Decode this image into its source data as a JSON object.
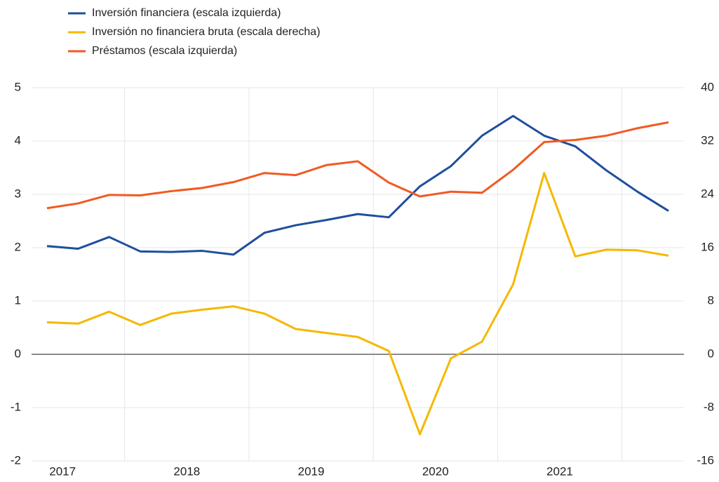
{
  "chart_data": {
    "type": "line",
    "categories": [
      "2017",
      null,
      null,
      null,
      "2018",
      null,
      null,
      null,
      "2019",
      null,
      null,
      null,
      "2020",
      null,
      null,
      null,
      "2021",
      null,
      null,
      null,
      null
    ],
    "series": [
      {
        "name": "Inversión financiera (escala izquierda)",
        "color": "#1f4e9c",
        "axis": "y",
        "values": [
          2.03,
          1.98,
          2.2,
          1.93,
          1.92,
          1.94,
          1.87,
          2.28,
          2.42,
          2.52,
          2.63,
          2.57,
          3.15,
          3.53,
          4.1,
          4.47,
          4.1,
          3.9,
          3.45,
          3.05,
          2.69
        ]
      },
      {
        "name": "Inversión no financiera bruta (escala derecha)",
        "color": "#f5b800",
        "axis": "y2",
        "values": [
          4.8,
          4.6,
          6.4,
          4.4,
          6.1,
          6.7,
          7.2,
          6.1,
          3.8,
          3.2,
          2.6,
          0.5,
          -12,
          -0.6,
          1.9,
          10.5,
          27.2,
          14.7,
          15.7,
          15.6,
          14.8
        ]
      },
      {
        "name": "Préstamos (escala izquierda)",
        "color": "#f05a22",
        "axis": "y",
        "values": [
          2.74,
          2.83,
          2.99,
          2.98,
          3.06,
          3.12,
          3.23,
          3.4,
          3.36,
          3.55,
          3.62,
          3.22,
          2.96,
          3.05,
          3.03,
          3.46,
          3.98,
          4.02,
          4.1,
          4.24,
          4.35
        ]
      }
    ],
    "ylim": [
      -2,
      5
    ],
    "yticks": [
      -2,
      -1,
      0,
      1,
      2,
      3,
      4,
      5
    ],
    "y2lim": [
      -16,
      40
    ],
    "y2ticks": [
      -16,
      -8,
      0,
      8,
      16,
      24,
      32,
      40
    ],
    "grid": true
  }
}
